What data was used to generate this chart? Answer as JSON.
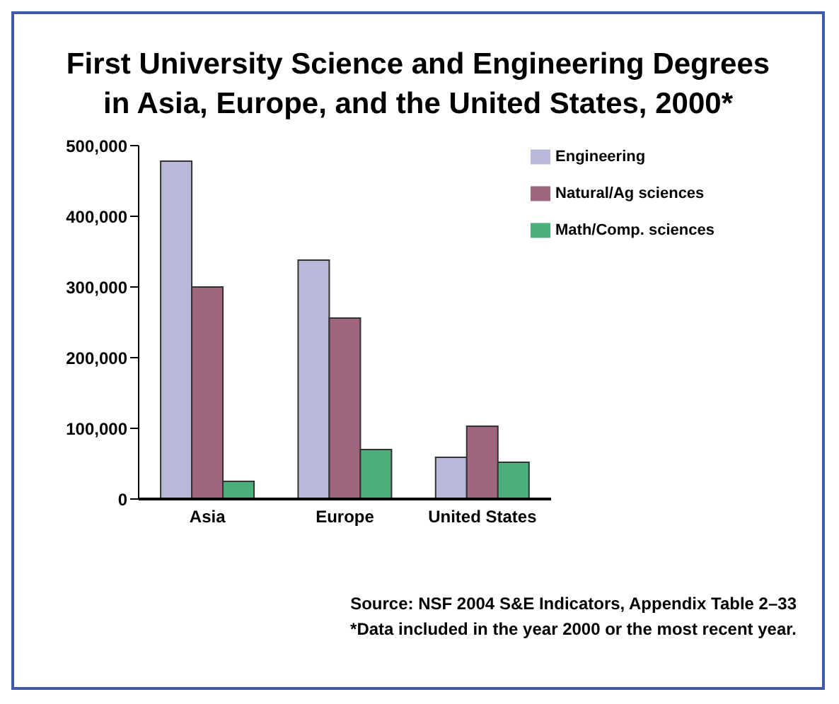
{
  "chart_data": {
    "type": "bar",
    "title": "First University Science and Engineering Degrees in Asia, Europe, and the United States, 2000*",
    "categories": [
      "Asia",
      "Europe",
      "United States"
    ],
    "series": [
      {
        "name": "Engineering",
        "color": "#b8b8d8",
        "values": [
          478000,
          338000,
          59000
        ]
      },
      {
        "name": "Natural/Ag sciences",
        "color": "#a0657f",
        "values": [
          300000,
          256000,
          103000
        ]
      },
      {
        "name": "Math/Comp. sciences",
        "color": "#4caf7c",
        "values": [
          25000,
          70000,
          52000
        ]
      }
    ],
    "ylim": [
      0,
      500000
    ],
    "yticks": [
      {
        "value": 0,
        "label": "0"
      },
      {
        "value": 100000,
        "label": "100,000"
      },
      {
        "value": 200000,
        "label": "200,000"
      },
      {
        "value": 300000,
        "label": "300,000"
      },
      {
        "value": 400000,
        "label": "400,000"
      },
      {
        "value": 500000,
        "label": "500,000"
      }
    ],
    "grid": false,
    "legend": "top right",
    "annotations": [
      "Source: NSF 2004 S&E Indicators, Appendix Table 2–33",
      "*Data included in the year 2000 or the most recent year."
    ]
  }
}
